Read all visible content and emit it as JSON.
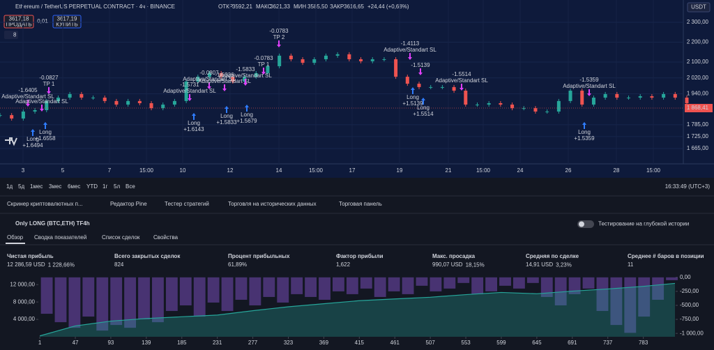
{
  "header": {
    "symbol": "Ethereum / TetherUS PERPETUAL CONTRACT · 4ч · BINANCE",
    "ohlc": [
      {
        "label": "ОТКР",
        "value": "3592,21"
      },
      {
        "label": "МАКС",
        "value": "3621,33"
      },
      {
        "label": "МИН",
        "value": "3585,50"
      },
      {
        "label": "ЗАКР",
        "value": "3616,65"
      }
    ],
    "change": "+24,44 (+0,68%)",
    "currency": "USDT"
  },
  "trade_buttons": {
    "sell_price": "3617,18",
    "sell": "ПРОДАТЬ",
    "spread": "0,01",
    "buy_price": "3617,19",
    "buy": "КУПИТЬ",
    "indicators": "8"
  },
  "chart_data": [
    {
      "type": "candlestick",
      "up_color": "#26a69a",
      "down_color": "#ef5350",
      "values": [
        1833,
        1816,
        1851,
        1858,
        1904,
        1921,
        1939,
        1921,
        1921,
        1904,
        1886,
        1904,
        1893,
        1868,
        1886,
        1904,
        2002,
        2026,
        2044,
        2026,
        2002,
        2026,
        2044,
        2079,
        2132,
        2114,
        2096,
        2114,
        2132,
        2139,
        2114,
        2104,
        2114,
        2114,
        2026,
        1991,
        1974,
        1974,
        1974,
        1956,
        1886,
        1886,
        1893,
        1886,
        1868,
        1868,
        1851,
        1851,
        1904,
        1956,
        1886,
        1921,
        1939,
        1921,
        1921,
        1928,
        1921,
        1939,
        1921,
        1893
      ],
      "ylim": [
        1588,
        2412
      ],
      "yticks": [
        {
          "value": 2300,
          "label": "2 300,00"
        },
        {
          "value": 2200,
          "label": "2 200,00"
        },
        {
          "value": 2100,
          "label": "2 100,00"
        },
        {
          "value": 2020,
          "label": "2 020,00"
        },
        {
          "value": 1940,
          "label": "1 940,00"
        },
        {
          "value": 1785,
          "label": "1 785,00"
        },
        {
          "value": 1725,
          "label": "1 725,00"
        },
        {
          "value": 1665,
          "label": "1 665,00"
        }
      ],
      "last_price": {
        "value": 1868.41,
        "label": "1 868,41"
      },
      "xtick_labels": [
        "3",
        "5",
        "7",
        "15:00",
        "10",
        "12",
        "14",
        "15:00",
        "17",
        "19",
        "21",
        "15:00",
        "24",
        "26",
        "28",
        "15:00"
      ],
      "entries": [
        {
          "label": "Long",
          "value": "+1.6494"
        },
        {
          "label": "Long",
          "value": "+1.6558"
        },
        {
          "label": "Long",
          "value": "+1.6143"
        },
        {
          "label": "Long",
          "value": "+1.5833"
        },
        {
          "label": "Long",
          "value": "+1.5679"
        },
        {
          "label": "Long",
          "value": "+1.5139"
        },
        {
          "label": "Long",
          "value": "+1.5514"
        },
        {
          "label": "Long",
          "value": "+1.5359"
        }
      ],
      "exits": [
        {
          "value": "-1.6405",
          "reason": "Adaptive/Standart SL"
        },
        {
          "value": "-0.0827",
          "reason": "TP 1"
        },
        {
          "reason": "Adaptive/Standart SL"
        },
        {
          "value": "-1.5731",
          "reason": "Adaptive/Standart SL"
        },
        {
          "value": "-0.0807",
          "reason": "Adaptive/Standart SL"
        },
        {
          "value": "-1.5336",
          "reason": "Adaptive/Standart SL"
        },
        {
          "value": "-1.5833",
          "reason": "Adaptive/Standart SL"
        },
        {
          "value": "-0.0783",
          "reason": "TP 1"
        },
        {
          "value": "-0.0783",
          "reason": "TP 2"
        },
        {
          "value": "-1.4113",
          "reason": "Adaptive/Standart SL"
        },
        {
          "value": "-1.5139"
        },
        {
          "value": "-1.5514",
          "reason": "Adaptive/Standart SL"
        },
        {
          "value": "-1.5359",
          "reason": "Adaptive/Standart SL"
        }
      ]
    },
    {
      "type": "equity",
      "xlim": [
        0,
        824
      ],
      "xticks": [
        1,
        47,
        93,
        139,
        185,
        231,
        277,
        323,
        369,
        415,
        461,
        507,
        553,
        599,
        645,
        691,
        737,
        783
      ],
      "ylim": [
        0,
        13800
      ],
      "yticks": [
        {
          "value": 12000,
          "label": "12 000,00"
        },
        {
          "value": 8000,
          "label": "8 000,00"
        },
        {
          "value": 4000,
          "label": "4 000,00"
        }
      ],
      "y2lim": [
        -1060,
        10
      ],
      "y2ticks": [
        {
          "value": 0,
          "label": "0,00"
        },
        {
          "value": -250,
          "label": "-250,00"
        },
        {
          "value": -500,
          "label": "-500,00"
        },
        {
          "value": -750,
          "label": "-750,00"
        },
        {
          "value": -1000,
          "label": "-1 000,00"
        }
      ],
      "series": [
        {
          "color": "#26a69a",
          "x": [
            1,
            47,
            93,
            139,
            185,
            231,
            277,
            323,
            369,
            415,
            461,
            507,
            553,
            599,
            645,
            691,
            737,
            783,
            824
          ],
          "values": [
            200,
            2500,
            3600,
            4200,
            4600,
            5000,
            6000,
            6900,
            7600,
            8300,
            8700,
            9100,
            9700,
            10200,
            9900,
            10500,
            11000,
            11600,
            12287
          ]
        },
        {
          "color": "#5b3e8e",
          "axis": "y2",
          "x": [
            10,
            28,
            46,
            64,
            82,
            100,
            118,
            136,
            154,
            172,
            190,
            208,
            226,
            244,
            262,
            280,
            298,
            316,
            334,
            352,
            370,
            388,
            406,
            424,
            442,
            460,
            478,
            496,
            514,
            532,
            550,
            568,
            586,
            604,
            622,
            640,
            658,
            676,
            694,
            712,
            730,
            748,
            766,
            784,
            802,
            820
          ],
          "values": [
            -650,
            -800,
            -900,
            -700,
            -950,
            -850,
            -900,
            -750,
            -800,
            -600,
            -500,
            -700,
            -450,
            -600,
            -400,
            -500,
            -350,
            -450,
            -300,
            -350,
            -400,
            -250,
            -300,
            -200,
            -350,
            -250,
            -300,
            -150,
            -250,
            -200,
            -100,
            -300,
            -250,
            -150,
            -200,
            -100,
            -350,
            -500,
            -300,
            -200,
            -600,
            -850,
            -990,
            -700,
            -400,
            -50
          ]
        }
      ]
    }
  ],
  "toolbar": {
    "periods": [
      "1д",
      "5д",
      "1мес",
      "3мес",
      "6мес",
      "YTD",
      "1г",
      "5л",
      "Все"
    ],
    "clock": "16:33:49 (UTC+3)"
  },
  "tabs": [
    "Скринер криптовалютных п...",
    "Редактор Pine",
    "Тестер стратегий",
    "Торговля на исторических данных",
    "Торговая панель"
  ],
  "strategy": {
    "name": "Only LONG (BTC,ETH) TF4h",
    "deep_history": "Тестирование на глубокой истории",
    "subtabs": [
      "Обзор",
      "Сводка показателей",
      "Список сделок",
      "Свойства"
    ]
  },
  "metrics": [
    {
      "label": "Чистая прибыль",
      "value": "12 286,59 USD",
      "extra": "1 228,66%"
    },
    {
      "label": "Всего закрытых сделок",
      "value": "824"
    },
    {
      "label": "Процент прибыльных",
      "value": "61,89%"
    },
    {
      "label": "Фактор прибыли",
      "value": "1,622"
    },
    {
      "label": "Макс. просадка",
      "value": "990,07 USD",
      "extra": "18,15%"
    },
    {
      "label": "Средняя по сделке",
      "value": "14,91 USD",
      "extra": "3,23%"
    },
    {
      "label": "Среднее # баров в позиции",
      "value": "11"
    }
  ]
}
